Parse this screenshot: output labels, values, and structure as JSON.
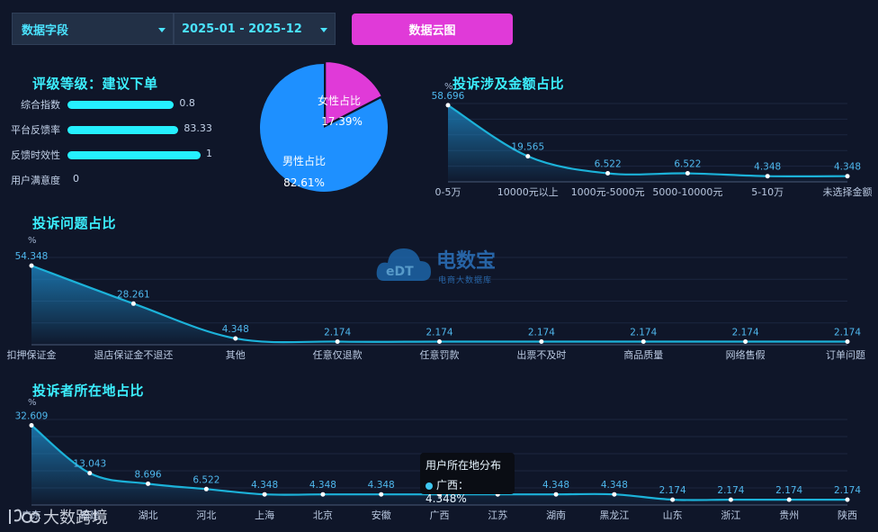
{
  "header": {
    "field_select": "数据字段",
    "date_range": "2025-01 - 2025-12",
    "cloud_button": "数据云图"
  },
  "watermark": {
    "brand": "电数宝",
    "subtitle": "电商大数据库",
    "bottom": "大数跨境"
  },
  "rating": {
    "title": "评级等级：建议下单",
    "items": [
      {
        "label": "综合指数",
        "value": 0.8,
        "display": "0.8"
      },
      {
        "label": "平台反馈率",
        "value": 83.33,
        "display": "83.33"
      },
      {
        "label": "反馈时效性",
        "value": 1,
        "display": "1"
      },
      {
        "label": "用户满意度",
        "value": 0,
        "display": "0"
      }
    ]
  },
  "tooltip": {
    "title": "用户所在地分布",
    "label": "广西：4.348%"
  },
  "chart_data": [
    {
      "type": "pie",
      "categories": [
        "男性占比",
        "女性占比"
      ],
      "values": [
        82.61,
        17.39
      ],
      "labels": [
        "82.61%",
        "17.39%"
      ],
      "colors": [
        "#1e90ff",
        "#e03ad8"
      ]
    },
    {
      "type": "area",
      "title": "投诉涉及金额占比",
      "ylabel": "%",
      "categories": [
        "0-5万",
        "10000元以上",
        "1000元-5000元",
        "5000-10000元",
        "5-10万",
        "未选择金额"
      ],
      "values": [
        58.696,
        19.565,
        6.522,
        6.522,
        4.348,
        4.348
      ],
      "ylim": [
        0,
        60
      ],
      "grid": true
    },
    {
      "type": "area",
      "title": "投诉问题占比",
      "ylabel": "%",
      "categories": [
        "扣押保证金",
        "退店保证金不退还",
        "其他",
        "任意仅退款",
        "任意罚款",
        "出票不及时",
        "商品质量",
        "网络售假",
        "订单问题"
      ],
      "values": [
        54.348,
        28.261,
        4.348,
        2.174,
        2.174,
        2.174,
        2.174,
        2.174,
        2.174
      ],
      "ylim": [
        0,
        60
      ],
      "grid": true
    },
    {
      "type": "area",
      "title": "投诉者所在地占比",
      "ylabel": "%",
      "categories": [
        "广东",
        "福建",
        "湖北",
        "河北",
        "上海",
        "北京",
        "安徽",
        "广西",
        "江苏",
        "湖南",
        "黑龙江",
        "山东",
        "浙江",
        "贵州",
        "陕西"
      ],
      "values": [
        32.609,
        13.043,
        8.696,
        6.522,
        4.348,
        4.348,
        4.348,
        4.348,
        4.348,
        4.348,
        4.348,
        2.174,
        2.174,
        2.174,
        2.174
      ],
      "ylim": [
        0,
        35
      ],
      "grid": true
    }
  ]
}
